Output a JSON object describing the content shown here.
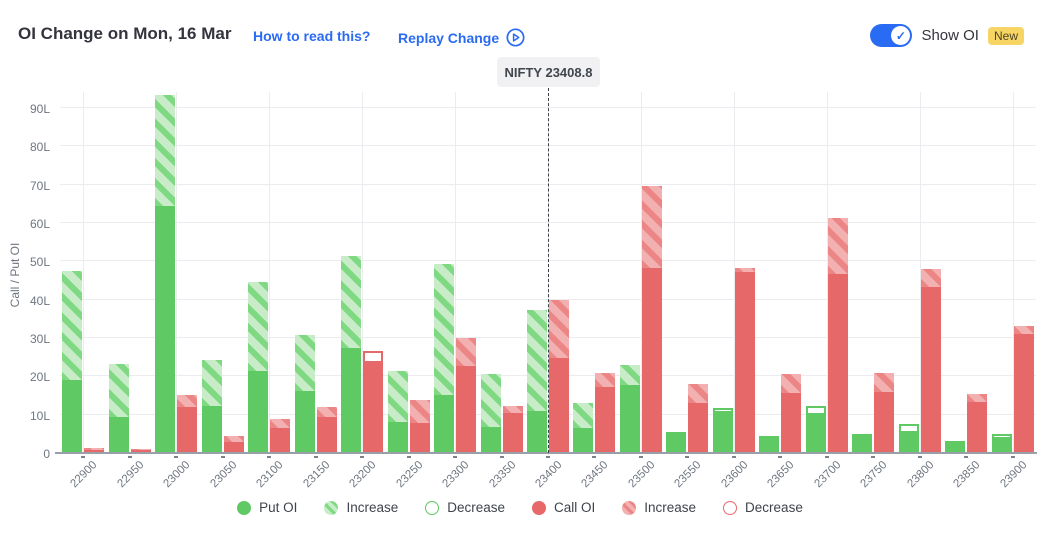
{
  "header": {
    "title": "OI Change on Mon, 16 Mar",
    "how_to_read_link": "How to read this?",
    "replay_link": "Replay Change",
    "show_oi_label": "Show OI",
    "new_badge": "New",
    "show_oi_toggle_state": "on",
    "toggle_check": "✓"
  },
  "colors": {
    "accent_blue": "#2a6bf3",
    "put_solid": "#5fc963",
    "put_hatch_bg": "#c8ecc8",
    "put_hatch_stripe": "#7fd982",
    "call_solid": "#e76868",
    "call_hatch_bg": "#f3b0b0",
    "call_hatch_stripe": "#ec8585",
    "badge_bg": "#f7d564",
    "grid": "#ececf0"
  },
  "chart_data": {
    "type": "bar",
    "title": "OI Change on Mon, 16 Mar",
    "ylabel": "Call / Put OI",
    "xlabel": "",
    "unit": "L (lakhs)",
    "ylim": [
      0,
      94
    ],
    "grid": true,
    "legend_position": "bottom",
    "yticks": [
      "0",
      "10L",
      "20L",
      "30L",
      "40L",
      "50L",
      "60L",
      "70L",
      "80L",
      "90L"
    ],
    "marker": {
      "label": "NIFTY 23408.8",
      "value": 23408.8,
      "at_category": "23400"
    },
    "categories": [
      "22900",
      "22950",
      "23000",
      "23050",
      "23100",
      "23150",
      "23200",
      "23250",
      "23300",
      "23350",
      "23400",
      "23450",
      "23500",
      "23550",
      "23600",
      "23650",
      "23700",
      "23750",
      "23800",
      "23850",
      "23900"
    ],
    "series": [
      {
        "name": "Put OI (existing)",
        "key": "put_solid",
        "values": [
          19,
          9.5,
          64.5,
          12.2,
          21.5,
          16.3,
          27.3,
          8,
          15.1,
          6.9,
          10.9,
          6.6,
          17.7,
          4.5,
          10.4,
          3.5,
          10,
          4,
          5.3,
          2,
          3.6
        ]
      },
      {
        "name": "Put OI increase (hatched)",
        "key": "put_inc",
        "values": [
          28.5,
          13.8,
          29,
          12,
          23.2,
          14.5,
          24,
          13.3,
          34.2,
          13.8,
          26.3,
          6.4,
          5.3,
          0,
          0,
          0,
          0,
          0,
          0,
          0,
          0
        ]
      },
      {
        "name": "Put OI decrease (outlined)",
        "key": "put_dec",
        "values": [
          0,
          0,
          0,
          0,
          0,
          0,
          0,
          0,
          0,
          0,
          0,
          0,
          0,
          0.5,
          1.3,
          1,
          2.3,
          0.8,
          2.4,
          1,
          1.3
        ]
      },
      {
        "name": "Call OI (existing)",
        "key": "call_solid",
        "values": [
          0.8,
          0.7,
          12,
          3,
          6.5,
          9.5,
          23.4,
          7.8,
          22.7,
          10.4,
          24.7,
          17.3,
          48.3,
          13,
          47.3,
          15.6,
          46.6,
          16,
          43.2,
          13.2,
          31
        ]
      },
      {
        "name": "Call OI increase (hatched)",
        "key": "call_inc",
        "values": [
          0.5,
          0.4,
          3.2,
          1.5,
          2.3,
          2.6,
          0,
          6.1,
          7.2,
          1.9,
          15.2,
          3.7,
          21.4,
          5,
          1,
          4.9,
          14.8,
          4.8,
          4.8,
          2.1,
          2.2
        ]
      },
      {
        "name": "Call OI decrease (outlined)",
        "key": "call_dec",
        "values": [
          0,
          0,
          0,
          0,
          0,
          0,
          3.2,
          0,
          0,
          0,
          0,
          0,
          0,
          0,
          0,
          0,
          0,
          0,
          0,
          0,
          0
        ]
      }
    ],
    "legend": [
      {
        "label": "Put OI",
        "swatch": "put-solid"
      },
      {
        "label": "Increase",
        "swatch": "put-hatch"
      },
      {
        "label": "Decrease",
        "swatch": "put-outline"
      },
      {
        "label": "Call OI",
        "swatch": "call-solid"
      },
      {
        "label": "Increase",
        "swatch": "call-hatch"
      },
      {
        "label": "Decrease",
        "swatch": "call-outline"
      }
    ]
  }
}
